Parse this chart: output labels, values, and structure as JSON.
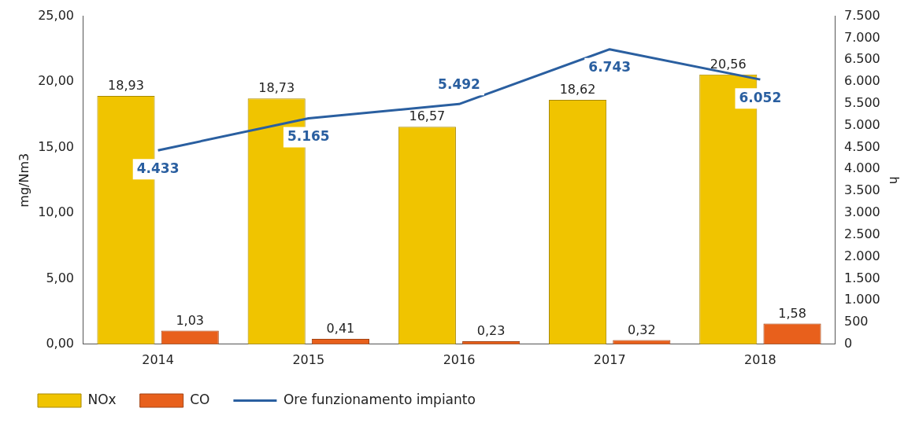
{
  "chart_data": {
    "type": "bar",
    "ylabel": "mg/Nm3",
    "y2label": "h",
    "categories": [
      "2014",
      "2015",
      "2016",
      "2017",
      "2018"
    ],
    "series": [
      {
        "name": "NOx",
        "color": "#f0c400",
        "values": [
          18.93,
          18.73,
          16.57,
          18.62,
          20.56
        ],
        "value_labels": [
          "18,93",
          "18,73",
          "16,57",
          "18,62",
          "20,56"
        ]
      },
      {
        "name": "CO",
        "color": "#e8601c",
        "values": [
          1.03,
          0.41,
          0.23,
          0.32,
          1.58
        ],
        "value_labels": [
          "1,03",
          "0,41",
          "0,23",
          "0,32",
          "1,58"
        ]
      },
      {
        "name": "Ore funzionamento impianto",
        "type": "line",
        "axis": "y2",
        "color": "#2a5fa0",
        "values": [
          4433,
          5165,
          5492,
          6743,
          6052
        ],
        "value_labels": [
          "4.433",
          "5.165",
          "5.492",
          "6.743",
          "6.052"
        ]
      }
    ],
    "ylim": [
      0,
      25
    ],
    "yticks": [
      {
        "value": 0,
        "label": "0,00"
      },
      {
        "value": 5,
        "label": "5,00"
      },
      {
        "value": 10,
        "label": "10,00"
      },
      {
        "value": 15,
        "label": "15,00"
      },
      {
        "value": 20,
        "label": "20,00"
      },
      {
        "value": 25,
        "label": "25,00"
      }
    ],
    "y2lim": [
      0,
      7500
    ],
    "y2ticks": [
      0,
      500,
      {
        "value": 1000,
        "label": "1.000"
      },
      {
        "value": 1500,
        "label": "1.500"
      },
      {
        "value": 2000,
        "label": "2.000"
      },
      {
        "value": 2500,
        "label": "2.500"
      },
      {
        "value": 3000,
        "label": "3.000"
      },
      {
        "value": 3500,
        "label": "3.500"
      },
      {
        "value": 4000,
        "label": "4.000"
      },
      {
        "value": 4500,
        "label": "4.500"
      },
      {
        "value": 5000,
        "label": "5.000"
      },
      {
        "value": 5500,
        "label": "5.500"
      },
      {
        "value": 6000,
        "label": "6.000"
      },
      {
        "value": 6500,
        "label": "6.500"
      },
      {
        "value": 7000,
        "label": "7.000"
      },
      {
        "value": 7500,
        "label": "7.500"
      }
    ],
    "grid": false,
    "legend": "bottom",
    "marker": "none",
    "line_style": "solid"
  }
}
